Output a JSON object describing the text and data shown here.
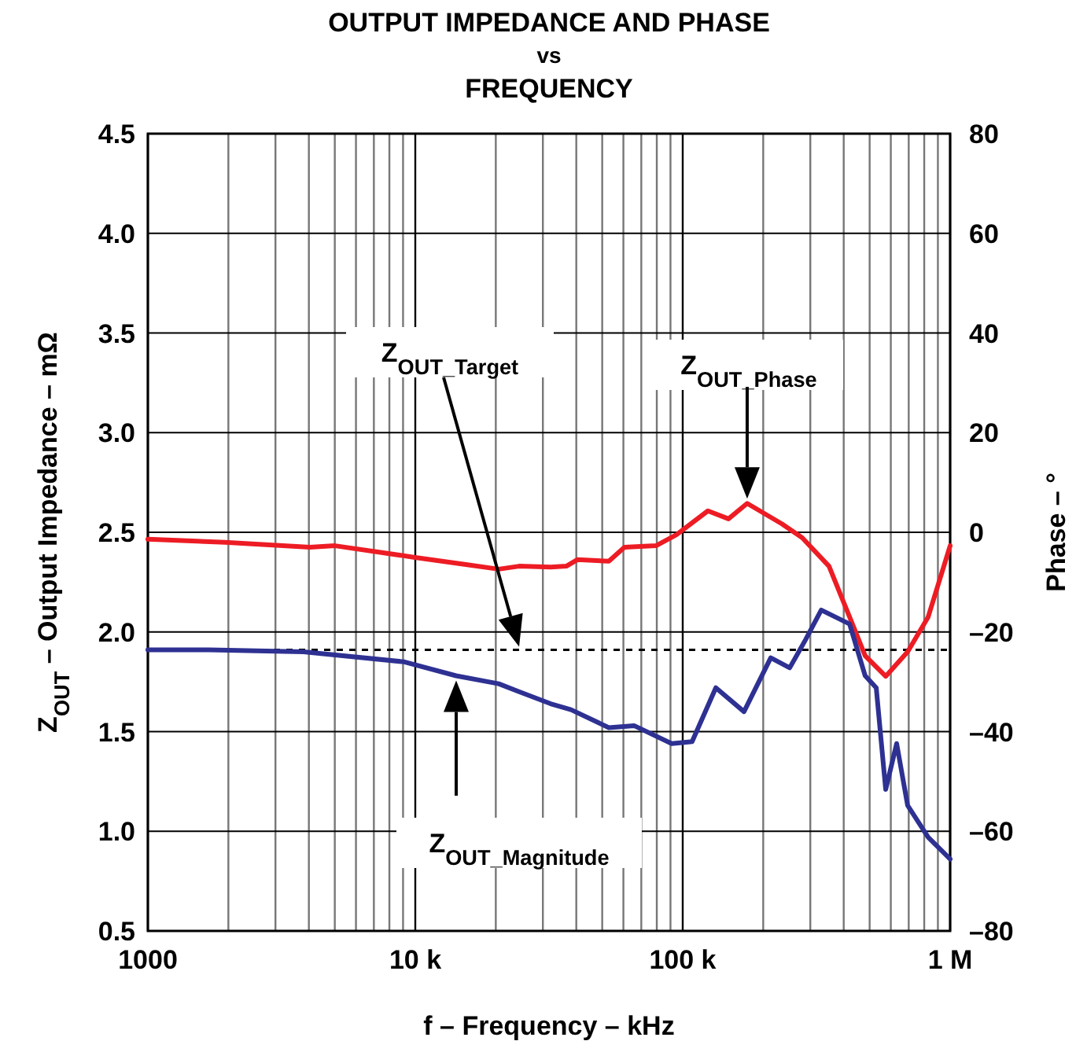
{
  "chart_data": {
    "type": "line",
    "title": "OUTPUT IMPEDANCE AND PHASE\nvs\nFREQUENCY",
    "xlabel": "f – Frequency – kHz",
    "ylabel": "Z$_{OUT}$ – Output Impedance – mΩ",
    "y2label": "Phase – °",
    "log": "x",
    "grid": true,
    "xlim": [
      1000,
      1000000
    ],
    "xticks": [
      {
        "value": 1000,
        "label": "1000"
      },
      {
        "value": 2000,
        "label": null
      },
      {
        "value": 3000,
        "label": null
      },
      {
        "value": 4000,
        "label": null
      },
      {
        "value": 5000,
        "label": null
      },
      {
        "value": 6000,
        "label": null
      },
      {
        "value": 7000,
        "label": null
      },
      {
        "value": 8000,
        "label": null
      },
      {
        "value": 9000,
        "label": null
      },
      {
        "value": 10000,
        "label": "10 k"
      },
      {
        "value": 20000,
        "label": null
      },
      {
        "value": 30000,
        "label": null
      },
      {
        "value": 40000,
        "label": null
      },
      {
        "value": 50000,
        "label": null
      },
      {
        "value": 60000,
        "label": null
      },
      {
        "value": 70000,
        "label": null
      },
      {
        "value": 80000,
        "label": null
      },
      {
        "value": 90000,
        "label": null
      },
      {
        "value": 100000,
        "label": "100 k"
      },
      {
        "value": 200000,
        "label": null
      },
      {
        "value": 300000,
        "label": null
      },
      {
        "value": 400000,
        "label": null
      },
      {
        "value": 500000,
        "label": null
      },
      {
        "value": 600000,
        "label": null
      },
      {
        "value": 700000,
        "label": null
      },
      {
        "value": 800000,
        "label": null
      },
      {
        "value": 900000,
        "label": null
      },
      {
        "value": 1000000,
        "label": "1 M"
      }
    ],
    "ylim": [
      0.5,
      4.5
    ],
    "yticks": [
      0.5,
      {
        "value": 1,
        "label": "1.0"
      },
      1.5,
      {
        "value": 2,
        "label": "2.0"
      },
      2.5,
      {
        "value": 3,
        "label": "3.0"
      },
      3.5,
      {
        "value": 4,
        "label": "4.0"
      },
      4.5
    ],
    "y2lim": [
      -80,
      80
    ],
    "y2ticks": [
      {
        "value": -80,
        "label": "–80"
      },
      {
        "value": -60,
        "label": "–60"
      },
      {
        "value": -40,
        "label": "–40"
      },
      {
        "value": -20,
        "label": "–20"
      },
      0,
      20,
      40,
      60,
      80
    ],
    "series": [
      {
        "color": "#ed1c24",
        "axis": "y2",
        "x": [
          1000,
          1942,
          4036,
          5012,
          9860,
          15640,
          20500,
          24440,
          32060,
          36700,
          40360,
          52940,
          60560,
          79430,
          94700,
          124200,
          148300,
          174200,
          234800,
          279900,
          352400,
          420700,
          481200,
          574100,
          693400,
          827600,
          1000000
        ],
        "values": [
          -1.4,
          -2,
          -3,
          -2.7,
          -5,
          -6.5,
          -7.4,
          -6.8,
          -7,
          -6.8,
          -5.5,
          -5.8,
          -3,
          -2.7,
          -0.5,
          4.3,
          2.7,
          5.8,
          1.7,
          -1.1,
          -6.8,
          -17,
          -24.8,
          -28.9,
          -24,
          -17,
          -2.7
        ]
      },
      {
        "color": "#2e3192",
        "x": [
          1000,
          1085,
          1695,
          3820,
          9100,
          14220,
          20500,
          24440,
          32060,
          38220,
          52940,
          65770,
          90950,
          108400,
          133000,
          169500,
          213400,
          251200,
          287700,
          329600,
          420700,
          481200,
          529200,
          574100,
          631000,
          693400,
          827600,
          1000000
        ],
        "values": [
          1.91,
          1.91,
          1.91,
          1.9,
          1.85,
          1.78,
          1.74,
          1.7,
          1.64,
          1.61,
          1.52,
          1.53,
          1.44,
          1.45,
          1.72,
          1.6,
          1.87,
          1.82,
          1.96,
          2.11,
          2.04,
          1.78,
          1.72,
          1.21,
          1.44,
          1.13,
          0.97,
          0.86
        ]
      }
    ],
    "ref_lines": [
      {
        "axis": "y",
        "value": 1.91,
        "line_style": "dashed",
        "color": "#000000"
      }
    ],
    "annotations": [
      "Z$_{OUT_Target}$",
      "Z$_{OUT_Phase}$",
      "Z$_{OUT_Magnitude}$"
    ]
  }
}
